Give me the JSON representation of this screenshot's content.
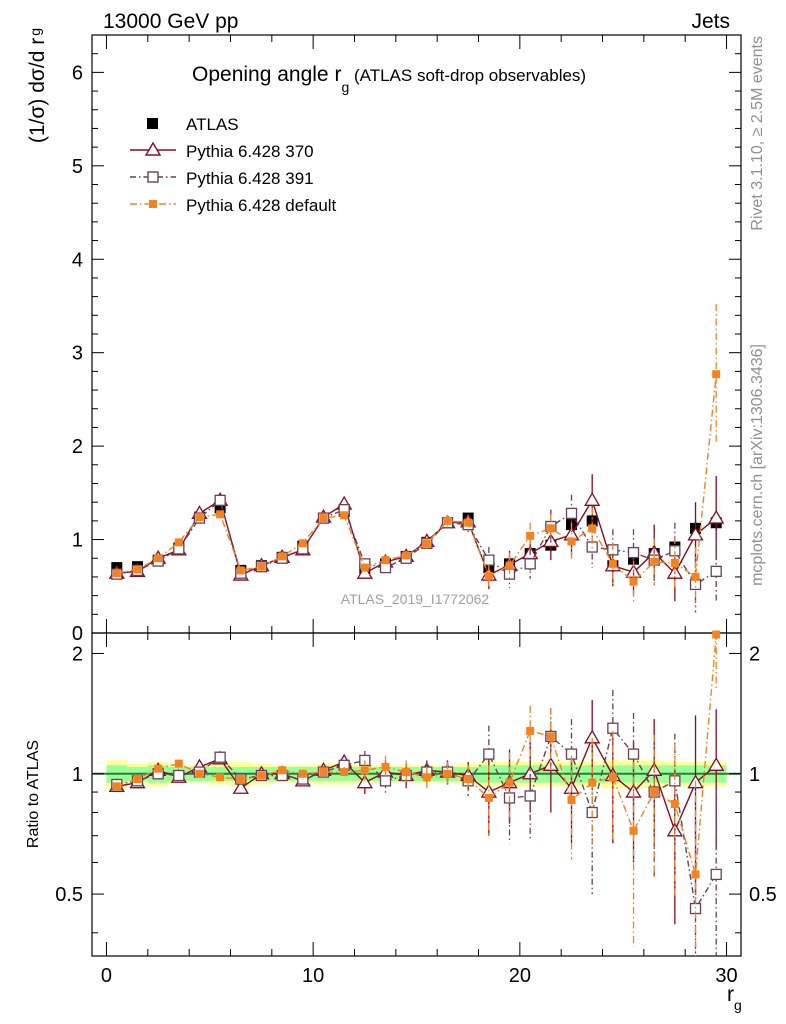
{
  "header": {
    "left": "13000 GeV pp",
    "right": "Jets"
  },
  "side_labels": {
    "rivet": "Rivet 3.1.10, ≥ 2.5M events",
    "mcplots": "mcplots.cern.ch [arXiv:1306.3436]"
  },
  "watermark": "ATLAS_2019_I1772062",
  "colors": {
    "atlas": "#000000",
    "py370": "#8b0a1e",
    "py391": "#6b4054",
    "pydef": "#f58220",
    "band_outer": "#ffff99",
    "band_inner": "#99ff99",
    "ratio_line": "#2e7d32"
  },
  "chart_data": [
    {
      "type": "line",
      "panel": "main",
      "title_main": "Opening angle r",
      "title_sub": "g",
      "title_rest": " (ATLAS soft-drop observables)",
      "ylabel_main": "(1/σ) dσ/d r",
      "ylabel_sub": "g",
      "ylim": [
        0,
        6.4
      ],
      "yticks": [
        0,
        1,
        2,
        3,
        4,
        5,
        6
      ],
      "xlim": [
        -0.7,
        30.7
      ],
      "x": [
        0.5,
        1.5,
        2.5,
        3.5,
        4.5,
        5.5,
        6.5,
        7.5,
        8.5,
        9.5,
        10.5,
        11.5,
        12.5,
        13.5,
        14.5,
        15.5,
        16.5,
        17.5,
        18.5,
        19.5,
        20.5,
        21.5,
        22.5,
        23.5,
        24.5,
        25.5,
        26.5,
        27.5,
        28.5,
        29.5
      ],
      "legend": [
        "ATLAS",
        "Pythia 6.428 370",
        "Pythia 6.428 391",
        "Pythia 6.428 default"
      ],
      "series": [
        {
          "key": "atlas",
          "name": "ATLAS",
          "values": [
            0.7,
            0.71,
            0.78,
            0.91,
            1.24,
            1.34,
            0.67,
            0.72,
            0.81,
            0.93,
            1.23,
            1.3,
            0.69,
            0.74,
            0.82,
            0.97,
            1.18,
            1.23,
            0.7,
            0.74,
            0.85,
            0.94,
            1.16,
            1.2,
            0.72,
            0.79,
            0.85,
            0.92,
            1.12,
            1.18
          ],
          "errors": [
            0.03,
            0.03,
            0.03,
            0.03,
            0.03,
            0.04,
            0.03,
            0.03,
            0.03,
            0.03,
            0.04,
            0.04,
            0.03,
            0.03,
            0.03,
            0.03,
            0.04,
            0.05,
            0.06,
            0.06,
            0.07,
            0.07,
            0.07,
            0.07,
            0.08,
            0.08,
            0.08,
            0.08,
            0.08,
            0.09
          ]
        },
        {
          "key": "py370",
          "name": "Pythia 6.428 370",
          "values": [
            0.64,
            0.66,
            0.8,
            0.89,
            1.28,
            1.42,
            0.62,
            0.72,
            0.81,
            0.89,
            1.24,
            1.38,
            0.64,
            0.76,
            0.82,
            0.98,
            1.18,
            1.19,
            0.62,
            0.73,
            0.85,
            0.98,
            1.05,
            1.42,
            0.72,
            0.65,
            0.86,
            0.64,
            1.05,
            1.23
          ],
          "errors": [
            0.03,
            0.03,
            0.03,
            0.03,
            0.03,
            0.04,
            0.03,
            0.03,
            0.03,
            0.03,
            0.04,
            0.04,
            0.04,
            0.05,
            0.05,
            0.06,
            0.06,
            0.08,
            0.15,
            0.15,
            0.18,
            0.2,
            0.22,
            0.28,
            0.22,
            0.24,
            0.3,
            0.3,
            0.35,
            0.45
          ]
        },
        {
          "key": "py391",
          "name": "Pythia 6.428 391",
          "values": [
            0.63,
            0.67,
            0.77,
            0.9,
            1.23,
            1.42,
            0.64,
            0.71,
            0.8,
            0.9,
            1.23,
            1.32,
            0.74,
            0.7,
            0.8,
            0.96,
            1.18,
            1.16,
            0.78,
            0.63,
            0.74,
            1.14,
            1.28,
            0.92,
            0.89,
            0.86,
            0.78,
            0.88,
            0.52,
            0.66
          ],
          "errors": [
            0.03,
            0.03,
            0.03,
            0.03,
            0.03,
            0.04,
            0.03,
            0.03,
            0.03,
            0.03,
            0.04,
            0.04,
            0.04,
            0.05,
            0.05,
            0.06,
            0.06,
            0.08,
            0.14,
            0.15,
            0.16,
            0.18,
            0.2,
            0.22,
            0.22,
            0.25,
            0.28,
            0.3,
            0.3,
            0.33
          ]
        },
        {
          "key": "pydef",
          "name": "Pythia 6.428 default",
          "values": [
            0.64,
            0.68,
            0.8,
            0.97,
            1.24,
            1.27,
            0.67,
            0.71,
            0.82,
            0.96,
            1.23,
            1.26,
            0.7,
            0.78,
            0.83,
            0.96,
            1.2,
            1.18,
            0.61,
            0.72,
            1.04,
            1.12,
            0.98,
            1.12,
            0.74,
            0.55,
            0.76,
            0.75,
            0.6,
            2.77
          ],
          "errors": [
            0.03,
            0.03,
            0.03,
            0.03,
            0.03,
            0.04,
            0.03,
            0.03,
            0.03,
            0.03,
            0.04,
            0.04,
            0.04,
            0.05,
            0.05,
            0.06,
            0.06,
            0.08,
            0.12,
            0.14,
            0.14,
            0.15,
            0.2,
            0.22,
            0.22,
            0.22,
            0.25,
            0.28,
            0.32,
            0.75
          ]
        }
      ]
    },
    {
      "type": "line",
      "panel": "ratio",
      "ylabel": "Ratio to ATLAS",
      "xlabel_main": "r",
      "xlabel_sub": "g",
      "ylim": [
        0.35,
        2.25
      ],
      "yticks": [
        0.5,
        1,
        2
      ],
      "ytick_labels": [
        "0.5",
        "1",
        "2"
      ],
      "xticks": [
        0,
        10,
        20,
        30
      ],
      "xlim": [
        -0.7,
        30.7
      ],
      "x": [
        0.5,
        1.5,
        2.5,
        3.5,
        4.5,
        5.5,
        6.5,
        7.5,
        8.5,
        9.5,
        10.5,
        11.5,
        12.5,
        13.5,
        14.5,
        15.5,
        16.5,
        17.5,
        18.5,
        19.5,
        20.5,
        21.5,
        22.5,
        23.5,
        24.5,
        25.5,
        26.5,
        27.5,
        28.5,
        29.5
      ],
      "band_outer": [
        0.08,
        0.06,
        0.07,
        0.05,
        0.05,
        0.06,
        0.07,
        0.06,
        0.05,
        0.05,
        0.06,
        0.06,
        0.05,
        0.05,
        0.05,
        0.05,
        0.05,
        0.06,
        0.07,
        0.07,
        0.07,
        0.07,
        0.07,
        0.07,
        0.08,
        0.08,
        0.08,
        0.07,
        0.07,
        0.07
      ],
      "band_inner": [
        0.05,
        0.04,
        0.05,
        0.04,
        0.04,
        0.04,
        0.04,
        0.04,
        0.04,
        0.04,
        0.04,
        0.04,
        0.04,
        0.04,
        0.04,
        0.04,
        0.04,
        0.04,
        0.05,
        0.05,
        0.05,
        0.05,
        0.05,
        0.05,
        0.05,
        0.05,
        0.05,
        0.05,
        0.05,
        0.05
      ],
      "series": [
        {
          "key": "py370",
          "name": "Pythia 6.428 370",
          "values": [
            0.93,
            0.95,
            1.02,
            0.98,
            1.04,
            1.09,
            0.92,
            1.0,
            1.0,
            0.96,
            1.02,
            1.07,
            0.95,
            1.01,
            0.99,
            1.02,
            1.01,
            0.99,
            0.9,
            0.95,
            1.0,
            1.05,
            0.92,
            1.23,
            0.99,
            0.9,
            1.02,
            0.72,
            0.95,
            1.05
          ],
          "errors": [
            0.02,
            0.02,
            0.02,
            0.02,
            0.02,
            0.02,
            0.02,
            0.02,
            0.02,
            0.02,
            0.02,
            0.03,
            0.06,
            0.07,
            0.07,
            0.06,
            0.07,
            0.08,
            0.2,
            0.2,
            0.2,
            0.25,
            0.25,
            0.3,
            0.32,
            0.3,
            0.35,
            0.3,
            0.45,
            0.4
          ]
        },
        {
          "key": "py391",
          "name": "Pythia 6.428 391",
          "values": [
            0.94,
            0.96,
            1.0,
            0.99,
            1.01,
            1.1,
            0.97,
            0.99,
            0.99,
            0.97,
            1.01,
            1.05,
            1.08,
            0.96,
            0.99,
            1.01,
            1.01,
            0.96,
            1.12,
            0.87,
            0.88,
            1.24,
            1.12,
            0.8,
            1.3,
            1.12,
            0.9,
            0.96,
            0.46,
            0.56
          ],
          "errors": [
            0.02,
            0.02,
            0.02,
            0.02,
            0.02,
            0.02,
            0.02,
            0.02,
            0.02,
            0.02,
            0.02,
            0.03,
            0.06,
            0.07,
            0.07,
            0.06,
            0.07,
            0.08,
            0.2,
            0.2,
            0.2,
            0.22,
            0.25,
            0.3,
            0.32,
            0.3,
            0.35,
            0.3,
            0.3,
            0.35
          ]
        },
        {
          "key": "pydef",
          "name": "Pythia 6.428 default",
          "values": [
            0.93,
            0.97,
            1.03,
            1.06,
            1.0,
            0.98,
            0.97,
            0.99,
            1.02,
            1.0,
            1.01,
            1.01,
            1.02,
            1.04,
            1.01,
            0.98,
            1.0,
            0.97,
            0.87,
            0.95,
            1.28,
            1.24,
            0.86,
            0.95,
            0.98,
            0.72,
            0.9,
            0.84,
            0.56,
            2.23
          ],
          "errors": [
            0.02,
            0.02,
            0.02,
            0.02,
            0.02,
            0.02,
            0.02,
            0.02,
            0.02,
            0.02,
            0.02,
            0.03,
            0.06,
            0.07,
            0.07,
            0.06,
            0.07,
            0.08,
            0.18,
            0.18,
            0.2,
            0.22,
            0.25,
            0.28,
            0.3,
            0.35,
            0.35,
            0.35,
            0.4,
            0.6
          ]
        }
      ]
    }
  ]
}
